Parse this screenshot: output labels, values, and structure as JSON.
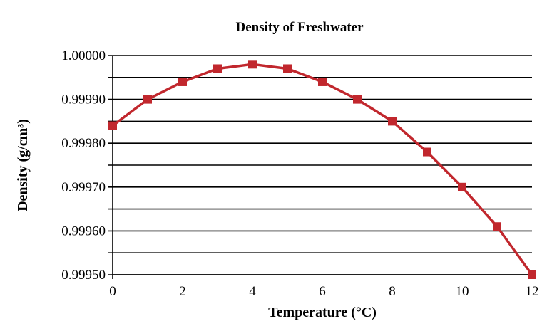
{
  "chart_data": {
    "type": "line",
    "title": "Density of Freshwater",
    "xlabel": "Temperature (°C)",
    "ylabel": "Density (g/cm³)",
    "x": [
      0,
      1,
      2,
      3,
      4,
      5,
      6,
      7,
      8,
      9,
      10,
      11,
      12
    ],
    "series": [
      {
        "name": "Density",
        "color": "#c1272d",
        "values": [
          0.99984,
          0.9999,
          0.99994,
          0.99997,
          0.99998,
          0.99997,
          0.99994,
          0.9999,
          0.99985,
          0.99978,
          0.9997,
          0.99961,
          0.9995
        ]
      }
    ],
    "xlim": [
      0,
      12
    ],
    "ylim": [
      0.9995,
      1.0
    ],
    "xticks": [
      "0",
      "2",
      "4",
      "6",
      "8",
      "10",
      "12"
    ],
    "yticks": [
      "0.99950",
      "0.99960",
      "0.99970",
      "0.99980",
      "0.99990",
      "1.00000"
    ],
    "grid": true
  }
}
